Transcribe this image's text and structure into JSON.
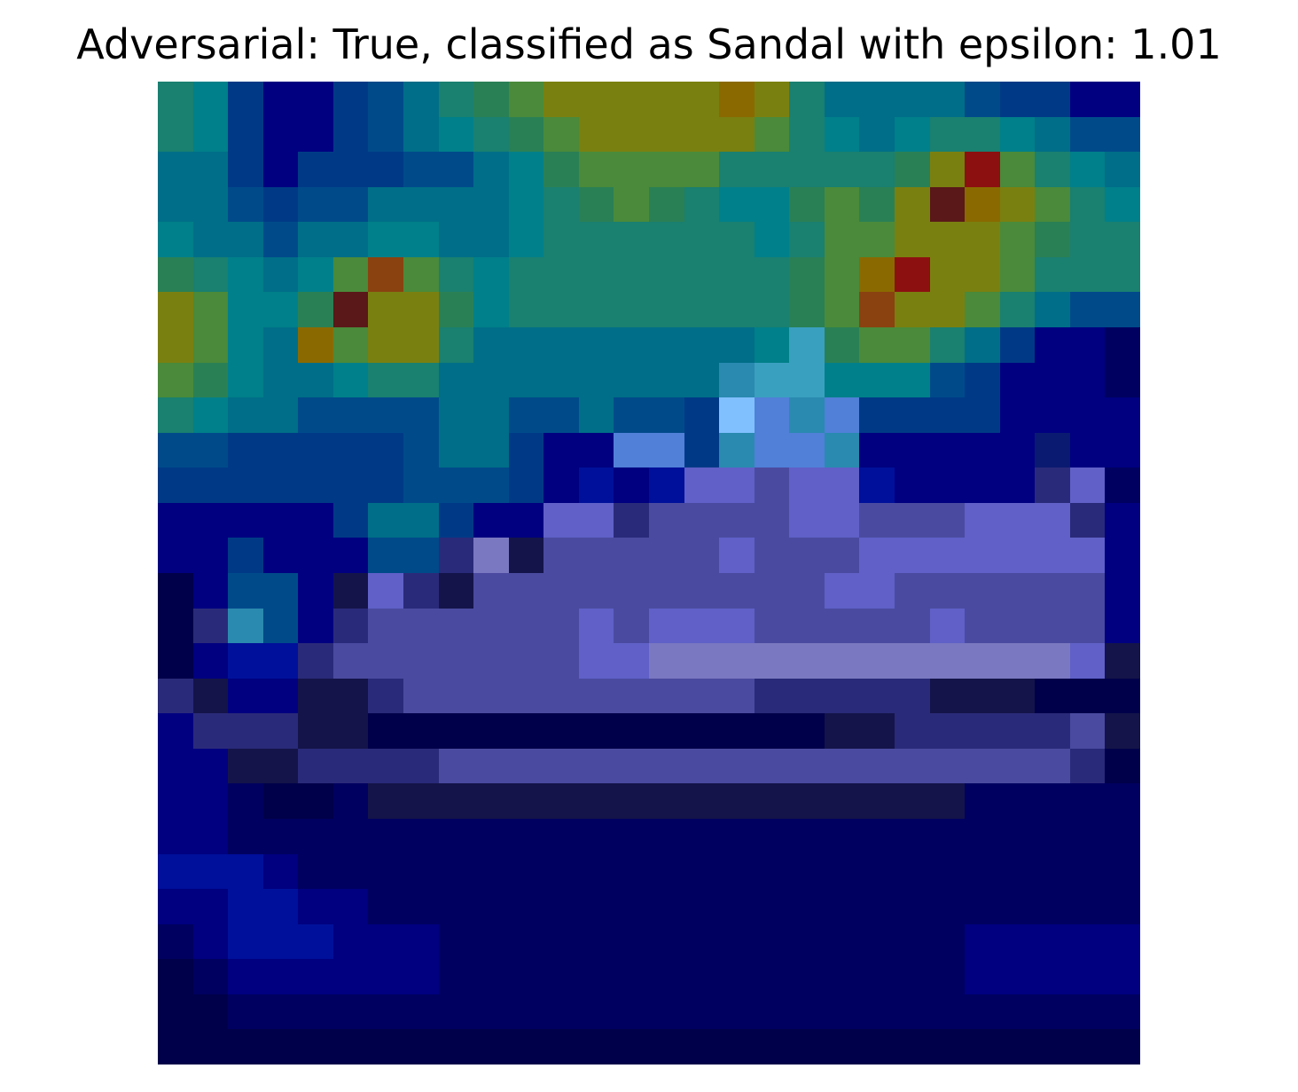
{
  "title": "Adversarial: True, classified as Sandal with epsilon: 1.01",
  "image": {
    "description_name": "adversarial-heatmap-overlay",
    "grid_size": 28,
    "palette": {
      "D": "#00004a",
      "K": "#000060",
      "N": "#000080",
      "B": "#00109a",
      "L": "#0a1a70",
      "M": "#003a86",
      "O": "#004a8a",
      "T": "#006e88",
      "U": "#00808a",
      "G": "#1a8070",
      "H": "#2a8055",
      "V": "#4a8a3a",
      "Y": "#7a8010",
      "W": "#8a6a00",
      "R": "#8c1010",
      "Q": "#5a1818",
      "E": "#8a4210",
      "C": "#2a8ab0",
      "S": "#3aa0c0",
      "F": "#80c0ff",
      "A": "#5080d8",
      "P": "#4a4aa0",
      "I": "#6060c8",
      "J": "#7a78c0",
      "X": "#2a2a7a",
      "Z": "#14144a"
    },
    "rows": [
      "GUMNNMOTGHVYYYYYWYGTTTTOMMNN",
      "GUMNNMOTUGHVYYYYYVGUTUGGUTOO",
      "TTMNMMMOOTUHVVVVGGGGGHYRVGUT",
      "TTOMOOTTTTUGHVHGUUHVHYQWYVGU",
      "UTTOTTUUTTUGGGGGGUGVVYYYVHGG",
      "HGUTUVEVGUGGGGGGGGHVWRYYVGGG",
      "YVUUHQYYHUGGGGGGGGHVEYYVGTOO",
      "YVUTWVYYGTTTTTTTTUSHVVGTMNN",
      "VHUTTUGGTTTTTTTTCSSUUUOMNNN",
      "GUTTOOOOTTOOTOOMFACAMMMMNNNN",
      "OOMMMMMOTTMNNAAMCAACNNNNNLNN",
      "MMMMMMMOOOMNBNBIIPIIBNNNNXIKN",
      "NNNNNMTTMNNIIXPPPPIIPPPIIIXN",
      "NNMNNNOOXJZPPPPPIPPPIIIIIIIN",
      "DNOONZIXZPPPPPPPPPPIIPPPPPPN",
      "DXCONXPPPPPPIPIIIPPPPPIPPPPN",
      "DNBBXPPPPPPPIIJJJJJJJJJJJJIZ",
      "XZNNZZXPPPPPPPPPPXXXXXZZZDDD",
      "NXXXZZDDDDDDDDDDDDDZZXXXXXPZ",
      "NNZZXXXXPPPPPPPPPPPPPPPPPPXD",
      "NNKDDKZZZZZZZZZZZZZZZZZKKKKK",
      "NNKKKKKKKKKKKKKKKKKKKKKKKKKK",
      "BBBNKKKKKKKKKKKKKKKKKKKKKKKK",
      "NNBBNNKKKKKKKKKKKKKKKKKKKKKK",
      "KNBBBNNNKKKKKKKKKKKKKKKNNNNN",
      "DKNNNNNNKKKKKKKKKKKKKKKNNNNN",
      "DDKKKKKKKKKKKKKKKKKKKKKKKKKK",
      "DDDDDDDDDDDDDDDDDDDDDDDDDDDD"
    ]
  }
}
